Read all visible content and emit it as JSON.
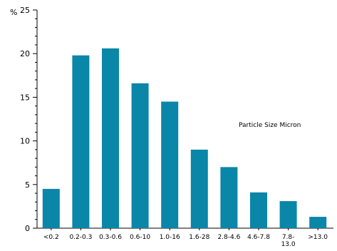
{
  "chart_data": {
    "type": "bar",
    "ylabel": "%",
    "xlabel": "",
    "annotation": "Particle Size  Micron",
    "categories": [
      "<0.2",
      "0.2-0.3",
      "0.3-0.6",
      "0.6-10",
      "1.0-16",
      "1.6-28",
      "2.8-4.6",
      "4.6-7.8",
      "7.8-\n13.0",
      ">13.0"
    ],
    "values": [
      4.5,
      19.8,
      20.6,
      16.6,
      14.5,
      9.0,
      7.0,
      4.1,
      3.1,
      1.3
    ],
    "ylim": [
      0,
      25
    ],
    "yticks": [
      0,
      5,
      10,
      15,
      20,
      25
    ],
    "bar_color": "#0a86a8",
    "axis_color": "#000000",
    "grid": false
  }
}
